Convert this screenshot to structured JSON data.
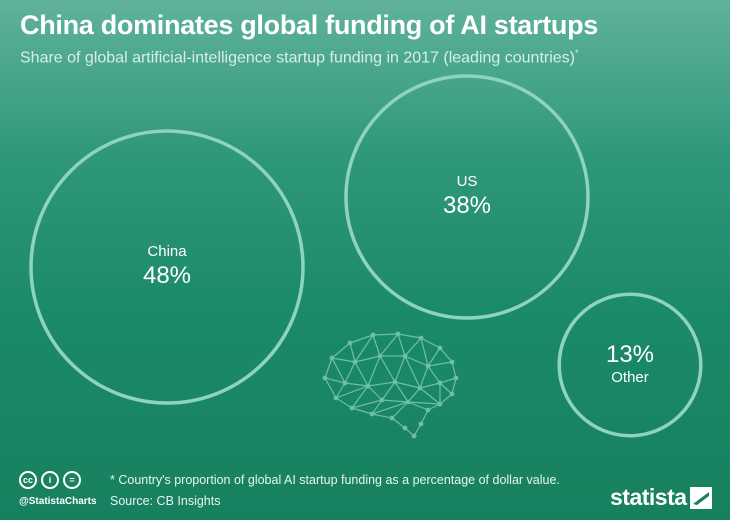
{
  "title": "China dominates global funding of AI startups",
  "subtitle": "Share of global artificial-intelligence startup funding in 2017 (leading countries)",
  "subtitle_marker": "*",
  "chart_data": {
    "type": "bubble",
    "categories": [
      "China",
      "US",
      "Other"
    ],
    "values": [
      48,
      38,
      13
    ],
    "value_labels": [
      "48%",
      "38%",
      "13%"
    ],
    "unit": "%"
  },
  "footer": {
    "note": "* Country's proportion of global AI startup funding as a percentage of dollar value.",
    "source": "Source: CB Insights",
    "handle": "@StatistaCharts",
    "license_icons": [
      "cc",
      "i",
      "="
    ]
  },
  "brand": "statista",
  "colors": {
    "circle_stroke": "#8ed3bd",
    "brain_stroke": "#7cc9b1",
    "background_top": "#5fb39a",
    "background_bottom": "#17805f"
  }
}
